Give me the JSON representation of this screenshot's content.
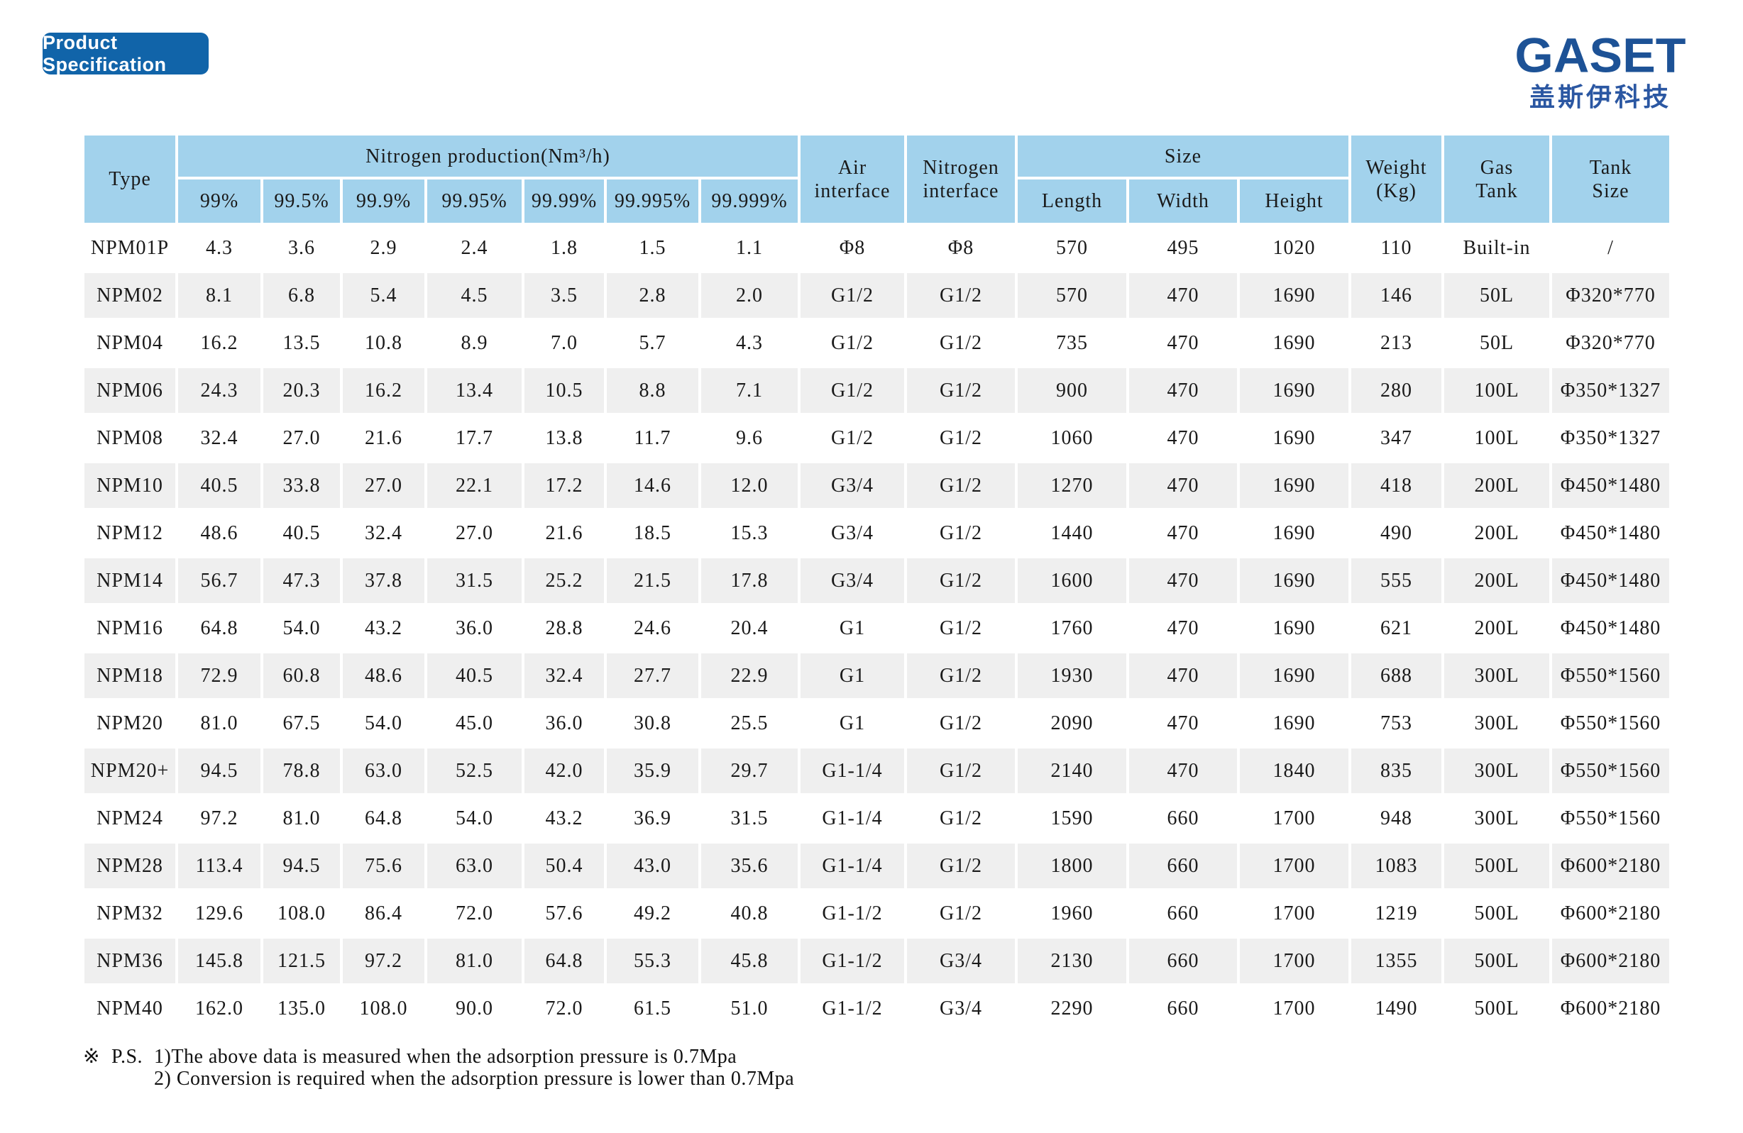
{
  "title_badge": "Product Specification",
  "logo": {
    "text": "GASET",
    "subtext": "盖斯伊科技"
  },
  "table": {
    "header": {
      "type": "Type",
      "nitrogen_production_group": "Nitrogen production(Nm³/h)",
      "purity_columns": [
        "99%",
        "99.5%",
        "99.9%",
        "99.95%",
        "99.99%",
        "99.995%",
        "99.999%"
      ],
      "air_interface": [
        "Air",
        "interface"
      ],
      "nitrogen_interface": [
        "Nitrogen",
        "interface"
      ],
      "size_group": "Size",
      "size_columns": [
        "Length",
        "Width",
        "Height"
      ],
      "weight": [
        "Weight",
        "(Kg)"
      ],
      "gas_tank": [
        "Gas",
        "Tank"
      ],
      "tank_size": [
        "Tank",
        "Size"
      ]
    },
    "rows": [
      {
        "type": "NPM01P",
        "production": [
          "4.3",
          "3.6",
          "2.9",
          "2.4",
          "1.8",
          "1.5",
          "1.1"
        ],
        "air_interface": "Φ8",
        "nitrogen_interface": "Φ8",
        "length": "570",
        "width": "495",
        "height": "1020",
        "weight": "110",
        "gas_tank": "Built-in",
        "tank_size": "/"
      },
      {
        "type": "NPM02",
        "production": [
          "8.1",
          "6.8",
          "5.4",
          "4.5",
          "3.5",
          "2.8",
          "2.0"
        ],
        "air_interface": "G1/2",
        "nitrogen_interface": "G1/2",
        "length": "570",
        "width": "470",
        "height": "1690",
        "weight": "146",
        "gas_tank": "50L",
        "tank_size": "Φ320*770"
      },
      {
        "type": "NPM04",
        "production": [
          "16.2",
          "13.5",
          "10.8",
          "8.9",
          "7.0",
          "5.7",
          "4.3"
        ],
        "air_interface": "G1/2",
        "nitrogen_interface": "G1/2",
        "length": "735",
        "width": "470",
        "height": "1690",
        "weight": "213",
        "gas_tank": "50L",
        "tank_size": "Φ320*770"
      },
      {
        "type": "NPM06",
        "production": [
          "24.3",
          "20.3",
          "16.2",
          "13.4",
          "10.5",
          "8.8",
          "7.1"
        ],
        "air_interface": "G1/2",
        "nitrogen_interface": "G1/2",
        "length": "900",
        "width": "470",
        "height": "1690",
        "weight": "280",
        "gas_tank": "100L",
        "tank_size": "Φ350*1327"
      },
      {
        "type": "NPM08",
        "production": [
          "32.4",
          "27.0",
          "21.6",
          "17.7",
          "13.8",
          "11.7",
          "9.6"
        ],
        "air_interface": "G1/2",
        "nitrogen_interface": "G1/2",
        "length": "1060",
        "width": "470",
        "height": "1690",
        "weight": "347",
        "gas_tank": "100L",
        "tank_size": "Φ350*1327"
      },
      {
        "type": "NPM10",
        "production": [
          "40.5",
          "33.8",
          "27.0",
          "22.1",
          "17.2",
          "14.6",
          "12.0"
        ],
        "air_interface": "G3/4",
        "nitrogen_interface": "G1/2",
        "length": "1270",
        "width": "470",
        "height": "1690",
        "weight": "418",
        "gas_tank": "200L",
        "tank_size": "Φ450*1480"
      },
      {
        "type": "NPM12",
        "production": [
          "48.6",
          "40.5",
          "32.4",
          "27.0",
          "21.6",
          "18.5",
          "15.3"
        ],
        "air_interface": "G3/4",
        "nitrogen_interface": "G1/2",
        "length": "1440",
        "width": "470",
        "height": "1690",
        "weight": "490",
        "gas_tank": "200L",
        "tank_size": "Φ450*1480"
      },
      {
        "type": "NPM14",
        "production": [
          "56.7",
          "47.3",
          "37.8",
          "31.5",
          "25.2",
          "21.5",
          "17.8"
        ],
        "air_interface": "G3/4",
        "nitrogen_interface": "G1/2",
        "length": "1600",
        "width": "470",
        "height": "1690",
        "weight": "555",
        "gas_tank": "200L",
        "tank_size": "Φ450*1480"
      },
      {
        "type": "NPM16",
        "production": [
          "64.8",
          "54.0",
          "43.2",
          "36.0",
          "28.8",
          "24.6",
          "20.4"
        ],
        "air_interface": "G1",
        "nitrogen_interface": "G1/2",
        "length": "1760",
        "width": "470",
        "height": "1690",
        "weight": "621",
        "gas_tank": "200L",
        "tank_size": "Φ450*1480"
      },
      {
        "type": "NPM18",
        "production": [
          "72.9",
          "60.8",
          "48.6",
          "40.5",
          "32.4",
          "27.7",
          "22.9"
        ],
        "air_interface": "G1",
        "nitrogen_interface": "G1/2",
        "length": "1930",
        "width": "470",
        "height": "1690",
        "weight": "688",
        "gas_tank": "300L",
        "tank_size": "Φ550*1560"
      },
      {
        "type": "NPM20",
        "production": [
          "81.0",
          "67.5",
          "54.0",
          "45.0",
          "36.0",
          "30.8",
          "25.5"
        ],
        "air_interface": "G1",
        "nitrogen_interface": "G1/2",
        "length": "2090",
        "width": "470",
        "height": "1690",
        "weight": "753",
        "gas_tank": "300L",
        "tank_size": "Φ550*1560"
      },
      {
        "type": "NPM20+",
        "production": [
          "94.5",
          "78.8",
          "63.0",
          "52.5",
          "42.0",
          "35.9",
          "29.7"
        ],
        "air_interface": "G1-1/4",
        "nitrogen_interface": "G1/2",
        "length": "2140",
        "width": "470",
        "height": "1840",
        "weight": "835",
        "gas_tank": "300L",
        "tank_size": "Φ550*1560"
      },
      {
        "type": "NPM24",
        "production": [
          "97.2",
          "81.0",
          "64.8",
          "54.0",
          "43.2",
          "36.9",
          "31.5"
        ],
        "air_interface": "G1-1/4",
        "nitrogen_interface": "G1/2",
        "length": "1590",
        "width": "660",
        "height": "1700",
        "weight": "948",
        "gas_tank": "300L",
        "tank_size": "Φ550*1560"
      },
      {
        "type": "NPM28",
        "production": [
          "113.4",
          "94.5",
          "75.6",
          "63.0",
          "50.4",
          "43.0",
          "35.6"
        ],
        "air_interface": "G1-1/4",
        "nitrogen_interface": "G1/2",
        "length": "1800",
        "width": "660",
        "height": "1700",
        "weight": "1083",
        "gas_tank": "500L",
        "tank_size": "Φ600*2180"
      },
      {
        "type": "NPM32",
        "production": [
          "129.6",
          "108.0",
          "86.4",
          "72.0",
          "57.6",
          "49.2",
          "40.8"
        ],
        "air_interface": "G1-1/2",
        "nitrogen_interface": "G1/2",
        "length": "1960",
        "width": "660",
        "height": "1700",
        "weight": "1219",
        "gas_tank": "500L",
        "tank_size": "Φ600*2180"
      },
      {
        "type": "NPM36",
        "production": [
          "145.8",
          "121.5",
          "97.2",
          "81.0",
          "64.8",
          "55.3",
          "45.8"
        ],
        "air_interface": "G1-1/2",
        "nitrogen_interface": "G3/4",
        "length": "2130",
        "width": "660",
        "height": "1700",
        "weight": "1355",
        "gas_tank": "500L",
        "tank_size": "Φ600*2180"
      },
      {
        "type": "NPM40",
        "production": [
          "162.0",
          "135.0",
          "108.0",
          "90.0",
          "72.0",
          "61.5",
          "51.0"
        ],
        "air_interface": "G1-1/2",
        "nitrogen_interface": "G3/4",
        "length": "2290",
        "width": "660",
        "height": "1700",
        "weight": "1490",
        "gas_tank": "500L",
        "tank_size": "Φ600*2180"
      }
    ]
  },
  "footnote": {
    "marker": "※",
    "label": "P.S.",
    "lines": [
      "1)The above data is measured when the adsorption pressure is 0.7Mpa",
      "2) Conversion is required when the adsorption pressure is lower than 0.7Mpa"
    ]
  },
  "colors": {
    "header_bg": "#a2d2ec",
    "row_stripe": "#efefef",
    "title_badge_bg": "#1164a9",
    "logo_blue": "#1d5296",
    "logo_cn_blue": "#2b57a2"
  }
}
